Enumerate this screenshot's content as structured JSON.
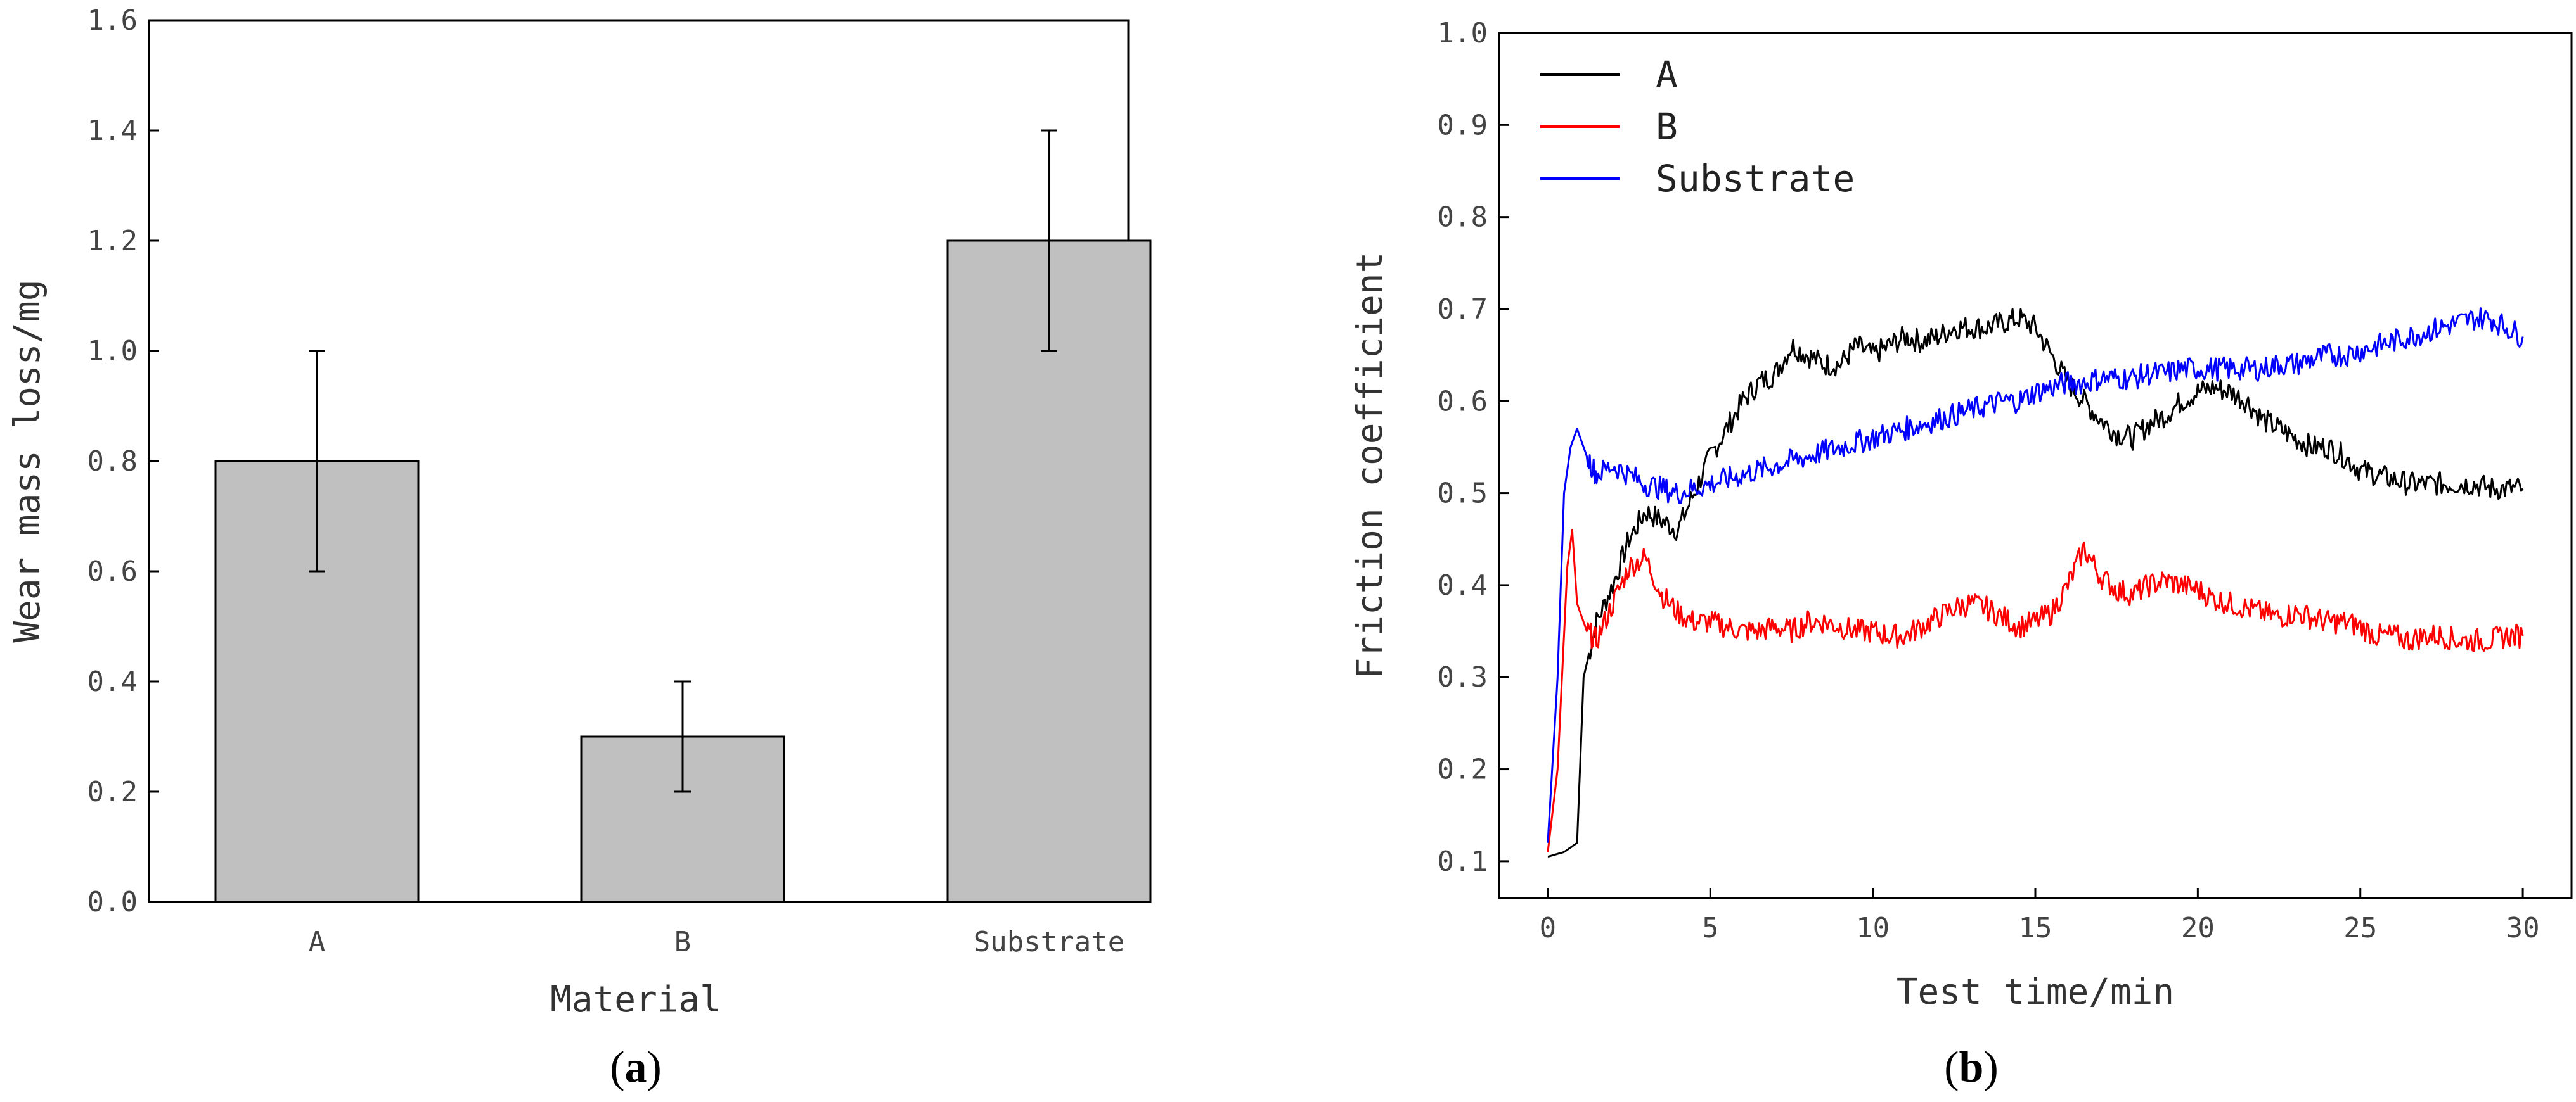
{
  "chart_data": [
    {
      "panel": "a",
      "type": "bar",
      "title": "",
      "xlabel": "Material",
      "ylabel": "Wear mass loss/mg",
      "ylim": [
        0,
        1.6
      ],
      "yticks": [
        "0.0",
        "0.2",
        "0.4",
        "0.6",
        "0.8",
        "1.0",
        "1.2",
        "1.4",
        "1.6"
      ],
      "categories": [
        "A",
        "B",
        "Substrate"
      ],
      "values": [
        0.8,
        0.3,
        1.2
      ],
      "error_low": [
        0.6,
        0.2,
        1.0
      ],
      "error_high": [
        1.0,
        0.4,
        1.4
      ],
      "bar_color": "#c0c0c0"
    },
    {
      "panel": "b",
      "type": "line",
      "title": "",
      "xlabel": "Test time/min",
      "ylabel": "Friction coefficient",
      "xlim": [
        -1.5,
        31.5
      ],
      "ylim": [
        0.06,
        1.0
      ],
      "xticks": [
        "0",
        "5",
        "10",
        "15",
        "20",
        "25",
        "30"
      ],
      "yticks": [
        "0.1",
        "0.2",
        "0.3",
        "0.4",
        "0.5",
        "0.6",
        "0.7",
        "0.8",
        "0.9",
        "1.0"
      ],
      "legend_position": "top-left",
      "series": [
        {
          "name": "A",
          "color": "#000000",
          "x": [
            0,
            0.5,
            0.9,
            1.1,
            1.5,
            2,
            2.5,
            3,
            3.5,
            4,
            4.5,
            5,
            5.5,
            6,
            6.5,
            7,
            7.5,
            8,
            8.5,
            9,
            9.5,
            10,
            10.5,
            11,
            11.5,
            12,
            12.5,
            13,
            13.5,
            14,
            14.5,
            15,
            15.5,
            16,
            16.5,
            17,
            17.5,
            18,
            18.5,
            19,
            19.5,
            20,
            20.5,
            21,
            21.5,
            22,
            22.5,
            23,
            23.5,
            24,
            24.5,
            25,
            25.5,
            26,
            26.5,
            27,
            27.5,
            28,
            28.5,
            29,
            29.5,
            30
          ],
          "y": [
            0.105,
            0.11,
            0.12,
            0.3,
            0.36,
            0.4,
            0.45,
            0.48,
            0.47,
            0.46,
            0.5,
            0.54,
            0.57,
            0.6,
            0.62,
            0.63,
            0.66,
            0.65,
            0.64,
            0.64,
            0.66,
            0.65,
            0.66,
            0.67,
            0.665,
            0.67,
            0.68,
            0.68,
            0.68,
            0.685,
            0.69,
            0.68,
            0.65,
            0.62,
            0.6,
            0.58,
            0.565,
            0.56,
            0.575,
            0.585,
            0.6,
            0.61,
            0.615,
            0.61,
            0.6,
            0.58,
            0.57,
            0.56,
            0.55,
            0.55,
            0.54,
            0.525,
            0.52,
            0.515,
            0.51,
            0.51,
            0.51,
            0.51,
            0.51,
            0.505,
            0.505,
            0.505
          ]
        },
        {
          "name": "B",
          "color": "#ff0000",
          "x": [
            0,
            0.3,
            0.6,
            0.75,
            0.9,
            1.2,
            1.5,
            2,
            2.5,
            3,
            3.5,
            4,
            4.5,
            5,
            5.5,
            6,
            6.5,
            7,
            7.5,
            8,
            8.5,
            9,
            9.5,
            10,
            10.5,
            11,
            11.5,
            12,
            12.5,
            13,
            13.5,
            14,
            14.5,
            15,
            15.5,
            16,
            16.5,
            17,
            17.5,
            18,
            18.5,
            19,
            19.5,
            20,
            20.5,
            21,
            21.5,
            22,
            22.5,
            23,
            23.5,
            24,
            24.5,
            25,
            25.5,
            26,
            26.5,
            27,
            27.5,
            28,
            28.5,
            29,
            29.5,
            30
          ],
          "y": [
            0.11,
            0.2,
            0.42,
            0.46,
            0.38,
            0.35,
            0.34,
            0.38,
            0.42,
            0.43,
            0.39,
            0.37,
            0.36,
            0.36,
            0.355,
            0.35,
            0.35,
            0.355,
            0.35,
            0.36,
            0.36,
            0.355,
            0.35,
            0.35,
            0.345,
            0.345,
            0.355,
            0.365,
            0.375,
            0.38,
            0.375,
            0.365,
            0.355,
            0.36,
            0.37,
            0.4,
            0.44,
            0.41,
            0.395,
            0.39,
            0.4,
            0.405,
            0.4,
            0.395,
            0.385,
            0.38,
            0.375,
            0.37,
            0.365,
            0.37,
            0.365,
            0.36,
            0.36,
            0.355,
            0.345,
            0.345,
            0.34,
            0.345,
            0.345,
            0.34,
            0.34,
            0.34,
            0.345,
            0.345
          ]
        },
        {
          "name": "Substrate",
          "color": "#0000ff",
          "x": [
            0,
            0.3,
            0.5,
            0.7,
            0.9,
            1.2,
            1.5,
            2,
            2.5,
            3,
            3.5,
            4,
            4.5,
            5,
            5.5,
            6,
            6.5,
            7,
            7.5,
            8,
            8.5,
            9,
            9.5,
            10,
            10.5,
            11,
            11.5,
            12,
            12.5,
            13,
            13.5,
            14,
            14.5,
            15,
            15.5,
            16,
            16.5,
            17,
            17.5,
            18,
            18.5,
            19,
            19.5,
            20,
            20.5,
            21,
            21.5,
            22,
            22.5,
            23,
            23.5,
            24,
            24.5,
            25,
            25.5,
            26,
            26.5,
            27,
            27.5,
            28,
            28.5,
            29,
            29.5,
            30
          ],
          "y": [
            0.12,
            0.3,
            0.5,
            0.55,
            0.57,
            0.54,
            0.52,
            0.53,
            0.52,
            0.51,
            0.505,
            0.5,
            0.505,
            0.51,
            0.515,
            0.52,
            0.525,
            0.53,
            0.535,
            0.54,
            0.545,
            0.55,
            0.555,
            0.56,
            0.565,
            0.57,
            0.575,
            0.58,
            0.585,
            0.59,
            0.595,
            0.6,
            0.6,
            0.61,
            0.615,
            0.62,
            0.62,
            0.625,
            0.625,
            0.625,
            0.63,
            0.63,
            0.635,
            0.635,
            0.635,
            0.635,
            0.635,
            0.635,
            0.64,
            0.64,
            0.645,
            0.65,
            0.65,
            0.655,
            0.66,
            0.665,
            0.67,
            0.675,
            0.68,
            0.685,
            0.69,
            0.69,
            0.68,
            0.67
          ]
        }
      ]
    }
  ],
  "captions": {
    "a": "a",
    "b": "b"
  }
}
